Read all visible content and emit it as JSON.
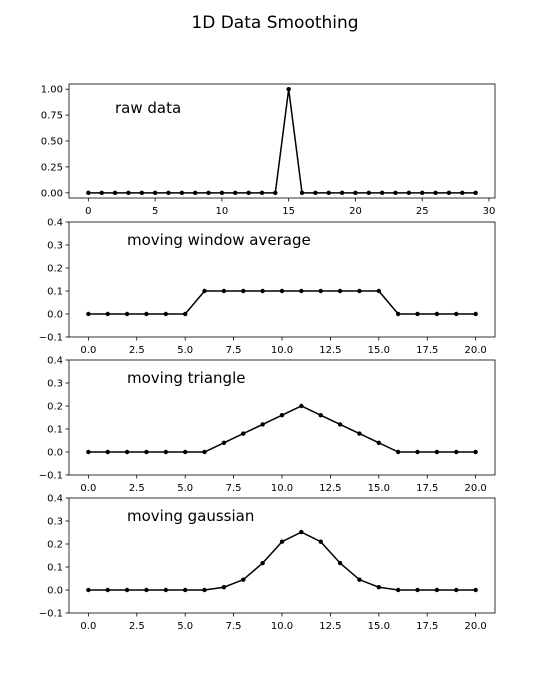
{
  "title": "1D Data Smoothing",
  "chart_data": [
    {
      "type": "line",
      "annotation": "raw data",
      "x": [
        0,
        1,
        2,
        3,
        4,
        5,
        6,
        7,
        8,
        9,
        10,
        11,
        12,
        13,
        14,
        15,
        16,
        17,
        18,
        19,
        20,
        21,
        22,
        23,
        24,
        25,
        26,
        27,
        28,
        29
      ],
      "y": [
        0,
        0,
        0,
        0,
        0,
        0,
        0,
        0,
        0,
        0,
        0,
        0,
        0,
        0,
        0,
        1,
        0,
        0,
        0,
        0,
        0,
        0,
        0,
        0,
        0,
        0,
        0,
        0,
        0,
        0
      ],
      "xlim": [
        -1.45,
        30.45
      ],
      "ylim": [
        -0.05,
        1.05
      ],
      "xticks": [
        0,
        5,
        10,
        15,
        20,
        25,
        30
      ],
      "xtick_labels": [
        "0",
        "5",
        "10",
        "15",
        "20",
        "25",
        "30"
      ],
      "yticks": [
        0,
        0.25,
        0.5,
        0.75,
        1
      ],
      "ytick_labels": [
        "0.00",
        "0.25",
        "0.50",
        "0.75",
        "1.00"
      ],
      "grid": false,
      "color": "#000000"
    },
    {
      "type": "line",
      "annotation": "moving window average",
      "x": [
        0,
        1,
        2,
        3,
        4,
        5,
        6,
        7,
        8,
        9,
        10,
        11,
        12,
        13,
        14,
        15,
        16,
        17,
        18,
        19,
        20
      ],
      "y": [
        0,
        0,
        0,
        0,
        0,
        0,
        0.1,
        0.1,
        0.1,
        0.1,
        0.1,
        0.1,
        0.1,
        0.1,
        0.1,
        0.1,
        0,
        0,
        0,
        0,
        0
      ],
      "xlim": [
        -1,
        21
      ],
      "ylim": [
        -0.1,
        0.4
      ],
      "xticks": [
        0,
        2.5,
        5,
        7.5,
        10,
        12.5,
        15,
        17.5,
        20
      ],
      "xtick_labels": [
        "0.0",
        "2.5",
        "5.0",
        "7.5",
        "10.0",
        "12.5",
        "15.0",
        "17.5",
        "20.0"
      ],
      "yticks": [
        -0.1,
        0,
        0.1,
        0.2,
        0.3,
        0.4
      ],
      "ytick_labels": [
        "−0.1",
        "0.0",
        "0.1",
        "0.2",
        "0.3",
        "0.4"
      ],
      "grid": false,
      "color": "#000000"
    },
    {
      "type": "line",
      "annotation": "moving triangle",
      "x": [
        0,
        1,
        2,
        3,
        4,
        5,
        6,
        7,
        8,
        9,
        10,
        11,
        12,
        13,
        14,
        15,
        16,
        17,
        18,
        19,
        20
      ],
      "y": [
        0,
        0,
        0,
        0,
        0,
        0,
        0,
        0.04,
        0.08,
        0.12,
        0.16,
        0.2,
        0.16,
        0.12,
        0.08,
        0.04,
        0,
        0,
        0,
        0,
        0
      ],
      "xlim": [
        -1,
        21
      ],
      "ylim": [
        -0.1,
        0.4
      ],
      "xticks": [
        0,
        2.5,
        5,
        7.5,
        10,
        12.5,
        15,
        17.5,
        20
      ],
      "xtick_labels": [
        "0.0",
        "2.5",
        "5.0",
        "7.5",
        "10.0",
        "12.5",
        "15.0",
        "17.5",
        "20.0"
      ],
      "yticks": [
        -0.1,
        0,
        0.1,
        0.2,
        0.3,
        0.4
      ],
      "ytick_labels": [
        "−0.1",
        "0.0",
        "0.1",
        "0.2",
        "0.3",
        "0.4"
      ],
      "grid": false,
      "color": "#000000"
    },
    {
      "type": "line",
      "annotation": "moving gaussian",
      "x": [
        0,
        1,
        2,
        3,
        4,
        5,
        6,
        7,
        8,
        9,
        10,
        11,
        12,
        13,
        14,
        15,
        16,
        17,
        18,
        19,
        20
      ],
      "y": [
        0,
        0,
        0,
        0,
        0,
        0,
        0,
        0.012,
        0.045,
        0.117,
        0.21,
        0.252,
        0.21,
        0.117,
        0.045,
        0.012,
        0,
        0,
        0,
        0,
        0
      ],
      "xlim": [
        -1,
        21
      ],
      "ylim": [
        -0.1,
        0.4
      ],
      "xticks": [
        0,
        2.5,
        5,
        7.5,
        10,
        12.5,
        15,
        17.5,
        20
      ],
      "xtick_labels": [
        "0.0",
        "2.5",
        "5.0",
        "7.5",
        "10.0",
        "12.5",
        "15.0",
        "17.5",
        "20.0"
      ],
      "yticks": [
        -0.1,
        0,
        0.1,
        0.2,
        0.3,
        0.4
      ],
      "ytick_labels": [
        "−0.1",
        "0.0",
        "0.1",
        "0.2",
        "0.3",
        "0.4"
      ],
      "grid": false,
      "color": "#000000"
    }
  ]
}
